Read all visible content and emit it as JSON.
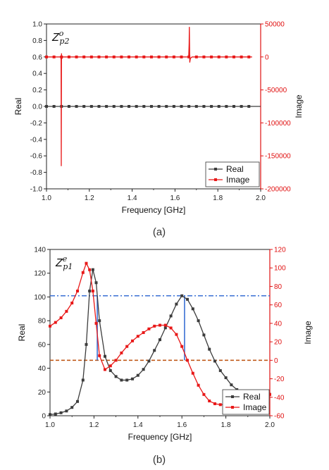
{
  "chart_data": [
    {
      "id": "a",
      "type": "line",
      "caption": "(a)",
      "annotation": {
        "base": "Z",
        "sup": "o",
        "sub": "p2"
      },
      "xlabel": "Frequency [GHz]",
      "ylabel": "Real",
      "y2label": "Image",
      "xlim": [
        1.0,
        2.0
      ],
      "ylim": [
        -1.0,
        1.0
      ],
      "y2lim": [
        -200000,
        50000
      ],
      "xticks": [
        "1.0",
        "1.2",
        "1.4",
        "1.6",
        "1.8",
        "2.0"
      ],
      "yticks": [
        "-1.0",
        "-0.8",
        "-0.6",
        "-0.4",
        "-0.2",
        "0.0",
        "0.2",
        "0.4",
        "0.6",
        "0.8",
        "1.0"
      ],
      "y2ticks": [
        "-200000",
        "-150000",
        "-100000",
        "-50000",
        "0",
        "50000"
      ],
      "legend_position": "bottom-right",
      "series": [
        {
          "name": "Real",
          "axis": "left",
          "color": "#3c3c3c",
          "marker": "square",
          "x": [
            1.0,
            2.0
          ],
          "y": [
            0.0,
            0.0
          ]
        },
        {
          "name": "Image",
          "axis": "right",
          "color": "#e81818",
          "marker": "square",
          "x": [
            1.0,
            1.068,
            1.069,
            1.07,
            1.071,
            1.074,
            1.08,
            1.664,
            1.666,
            1.667,
            1.669,
            1.672,
            1.68,
            1.96
          ],
          "y": [
            0,
            0,
            -165000,
            5000,
            -3000,
            0,
            0,
            0,
            20000,
            45000,
            -8000,
            -2000,
            0,
            0
          ]
        }
      ],
      "marker_x": [
        1.0,
        1.035,
        1.07,
        1.105,
        1.14,
        1.175,
        1.21,
        1.245,
        1.28,
        1.315,
        1.35,
        1.385,
        1.42,
        1.455,
        1.49,
        1.525,
        1.56,
        1.595,
        1.63,
        1.665,
        1.7,
        1.735,
        1.77,
        1.805,
        1.84,
        1.875,
        1.91,
        1.945
      ]
    },
    {
      "id": "b",
      "type": "line",
      "caption": "(b)",
      "annotation": {
        "base": "Z",
        "sup": "e",
        "sub": "p1"
      },
      "xlabel": "Frequency [GHz]",
      "ylabel": "Real",
      "y2label": "Image",
      "xlim": [
        1.0,
        2.0
      ],
      "ylim": [
        0,
        140
      ],
      "y2lim": [
        -60,
        120
      ],
      "xticks": [
        "1.0",
        "1.2",
        "1.4",
        "1.6",
        "1.8",
        "2.0"
      ],
      "yticks": [
        "0",
        "20",
        "40",
        "60",
        "80",
        "100",
        "120",
        "140"
      ],
      "y2ticks": [
        "-60",
        "-40",
        "-20",
        "0",
        "20",
        "40",
        "60",
        "80",
        "100",
        "120"
      ],
      "legend_position": "bottom-right",
      "series": [
        {
          "name": "Real",
          "axis": "left",
          "color": "#3c3c3c",
          "marker": "square",
          "x": [
            1.0,
            1.025,
            1.05,
            1.075,
            1.1,
            1.125,
            1.15,
            1.165,
            1.18,
            1.195,
            1.21,
            1.225,
            1.25,
            1.275,
            1.3,
            1.325,
            1.35,
            1.375,
            1.4,
            1.425,
            1.45,
            1.475,
            1.5,
            1.525,
            1.55,
            1.575,
            1.6,
            1.625,
            1.65,
            1.675,
            1.7,
            1.725,
            1.75,
            1.775,
            1.8,
            1.825,
            1.85,
            1.875,
            1.9,
            1.925,
            1.95,
            1.975,
            2.0
          ],
          "y": [
            1,
            1.5,
            2.5,
            4,
            7,
            12,
            30,
            60,
            105,
            123,
            112,
            80,
            50,
            38,
            33,
            30,
            30,
            31,
            34,
            39,
            46,
            55,
            64,
            74,
            84,
            94,
            101,
            98,
            90,
            80,
            68,
            56,
            46,
            38,
            32,
            26,
            22,
            19,
            18,
            18,
            18,
            18,
            18
          ]
        },
        {
          "name": "Image",
          "axis": "right",
          "color": "#e81818",
          "marker": "square",
          "x": [
            1.0,
            1.025,
            1.05,
            1.075,
            1.1,
            1.125,
            1.15,
            1.165,
            1.18,
            1.195,
            1.21,
            1.225,
            1.25,
            1.275,
            1.3,
            1.325,
            1.35,
            1.375,
            1.4,
            1.425,
            1.45,
            1.475,
            1.5,
            1.525,
            1.55,
            1.575,
            1.6,
            1.625,
            1.65,
            1.675,
            1.7,
            1.725,
            1.75,
            1.775,
            1.8,
            1.825,
            1.85,
            1.875,
            1.9,
            1.925,
            1.95,
            1.975,
            2.0
          ],
          "y": [
            37,
            41,
            46,
            53,
            62,
            75,
            95,
            105,
            98,
            75,
            40,
            5,
            -10,
            -6,
            0,
            8,
            15,
            21,
            26,
            30,
            34,
            37,
            38,
            38,
            35,
            28,
            15,
            0,
            -14,
            -27,
            -37,
            -44,
            -47,
            -48,
            -48,
            -48,
            -47,
            -46,
            -45,
            -43,
            -41,
            -39,
            -37
          ]
        }
      ],
      "reference_lines": [
        {
          "axis": "left",
          "value": 101,
          "style": "dash-dot",
          "color": "#3a6fd4"
        },
        {
          "axis": "right",
          "value": 0,
          "style": "dashed",
          "color": "#c05a1a"
        }
      ],
      "vertical_markers": [
        {
          "x": 1.215,
          "color": "#3a6fd4"
        },
        {
          "x": 1.612,
          "color": "#3a6fd4"
        }
      ]
    }
  ]
}
